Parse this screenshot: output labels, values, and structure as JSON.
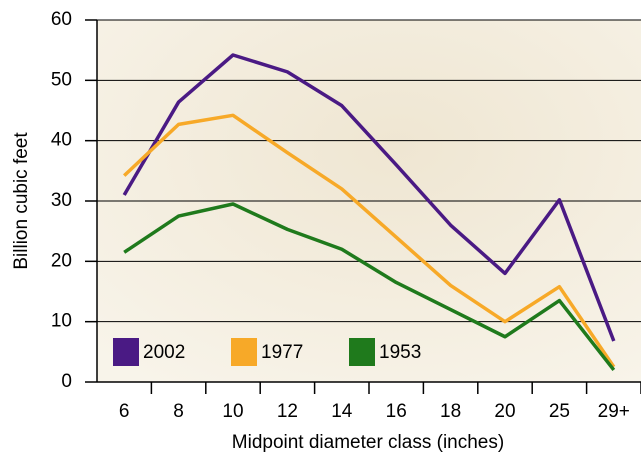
{
  "chart_data": {
    "type": "line",
    "x_label": "Midpoint diameter class (inches)",
    "y_label": "Billion cubic feet",
    "categories": [
      "6",
      "8",
      "10",
      "12",
      "14",
      "16",
      "18",
      "20",
      "25",
      "29+"
    ],
    "series": [
      {
        "name": "2002",
        "color": "#4a1a84",
        "values": [
          31,
          46.4,
          54.2,
          51.4,
          45.8,
          36,
          26,
          18,
          30.2,
          6.8
        ]
      },
      {
        "name": "1977",
        "color": "#f7a928",
        "values": [
          34.2,
          42.7,
          44.2,
          38,
          32,
          24,
          16,
          10,
          15.8,
          2.5
        ]
      },
      {
        "name": "1953",
        "color": "#1f7a1c",
        "values": [
          21.5,
          27.5,
          29.5,
          25.3,
          22,
          16.5,
          12,
          7.5,
          13.5,
          2
        ]
      }
    ],
    "ylim": [
      0,
      60
    ],
    "yticks": [
      0,
      10,
      20,
      30,
      40,
      50,
      60
    ],
    "grid": true,
    "legend": "lower left"
  }
}
